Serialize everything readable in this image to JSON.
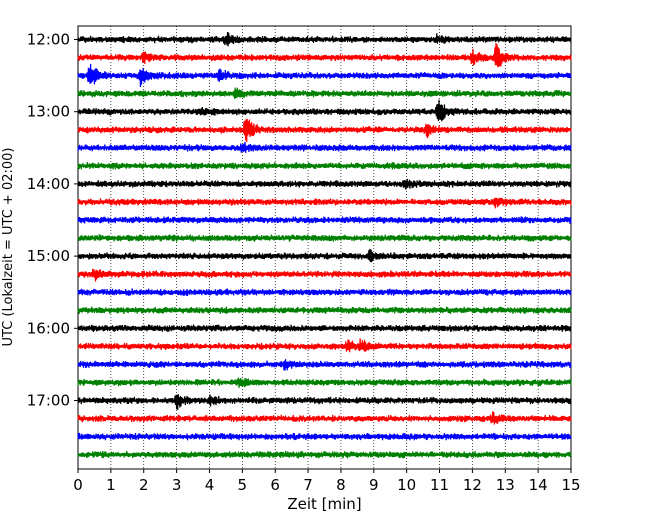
{
  "chart_data": {
    "type": "line",
    "title": "",
    "xlabel": "Zeit  [min]",
    "ylabel": "UTC (Lokalzeit = UTC + 02:00)",
    "xlim": [
      0,
      15
    ],
    "x_ticks": [
      0,
      1,
      2,
      3,
      4,
      5,
      6,
      7,
      8,
      9,
      10,
      11,
      12,
      13,
      14,
      15
    ],
    "y_tick_labels": [
      "12:00",
      "13:00",
      "14:00",
      "15:00",
      "16:00",
      "17:00"
    ],
    "grid": "vertical dotted lines at each minute",
    "trace_interval_min": 15,
    "colors": [
      "#000000",
      "#ff0000",
      "#0000ff",
      "#008000"
    ],
    "traces": [
      {
        "start": "12:00",
        "color": "#000000",
        "events": [
          {
            "x": 4.5,
            "amp": 0.4
          },
          {
            "x": 10.9,
            "amp": 0.25
          }
        ]
      },
      {
        "start": "12:15",
        "color": "#ff0000",
        "events": [
          {
            "x": 12.7,
            "amp": 0.9
          },
          {
            "x": 2.0,
            "amp": 0.25
          },
          {
            "x": 12.0,
            "amp": 0.35
          }
        ]
      },
      {
        "start": "12:30",
        "color": "#0000ff",
        "events": [
          {
            "x": 0.35,
            "amp": 0.8
          },
          {
            "x": 1.9,
            "amp": 0.55
          },
          {
            "x": 4.3,
            "amp": 0.35
          }
        ]
      },
      {
        "start": "12:45",
        "color": "#008000",
        "events": [
          {
            "x": 4.8,
            "amp": 0.3
          }
        ]
      },
      {
        "start": "13:00",
        "color": "#000000",
        "events": [
          {
            "x": 10.95,
            "amp": 0.8
          },
          {
            "x": 3.7,
            "amp": 0.25
          }
        ]
      },
      {
        "start": "13:15",
        "color": "#ff0000",
        "events": [
          {
            "x": 5.1,
            "amp": 1.0
          },
          {
            "x": 10.6,
            "amp": 0.35
          }
        ]
      },
      {
        "start": "13:30",
        "color": "#0000ff",
        "events": [
          {
            "x": 5.0,
            "amp": 0.3
          }
        ]
      },
      {
        "start": "13:45",
        "color": "#008000",
        "events": []
      },
      {
        "start": "14:00",
        "color": "#000000",
        "events": [
          {
            "x": 9.95,
            "amp": 0.3
          }
        ]
      },
      {
        "start": "14:15",
        "color": "#ff0000",
        "events": [
          {
            "x": 12.7,
            "amp": 0.25
          }
        ]
      },
      {
        "start": "14:30",
        "color": "#0000ff",
        "events": []
      },
      {
        "start": "14:45",
        "color": "#008000",
        "events": []
      },
      {
        "start": "15:00",
        "color": "#000000",
        "events": [
          {
            "x": 8.85,
            "amp": 0.35
          }
        ]
      },
      {
        "start": "15:15",
        "color": "#ff0000",
        "events": [
          {
            "x": 0.5,
            "amp": 0.3
          }
        ]
      },
      {
        "start": "15:30",
        "color": "#0000ff",
        "events": []
      },
      {
        "start": "15:45",
        "color": "#008000",
        "events": []
      },
      {
        "start": "16:00",
        "color": "#000000",
        "events": []
      },
      {
        "start": "16:15",
        "color": "#ff0000",
        "events": [
          {
            "x": 8.2,
            "amp": 0.35
          },
          {
            "x": 8.6,
            "amp": 0.35
          }
        ]
      },
      {
        "start": "16:30",
        "color": "#0000ff",
        "events": [
          {
            "x": 6.3,
            "amp": 0.25
          }
        ]
      },
      {
        "start": "16:45",
        "color": "#008000",
        "events": [
          {
            "x": 4.9,
            "amp": 0.25
          }
        ]
      },
      {
        "start": "17:00",
        "color": "#000000",
        "events": [
          {
            "x": 3.0,
            "amp": 0.45
          },
          {
            "x": 4.0,
            "amp": 0.25
          }
        ]
      },
      {
        "start": "17:15",
        "color": "#ff0000",
        "events": [
          {
            "x": 12.6,
            "amp": 0.3
          }
        ]
      },
      {
        "start": "17:30",
        "color": "#0000ff",
        "events": []
      },
      {
        "start": "17:45",
        "color": "#008000",
        "events": []
      }
    ]
  }
}
